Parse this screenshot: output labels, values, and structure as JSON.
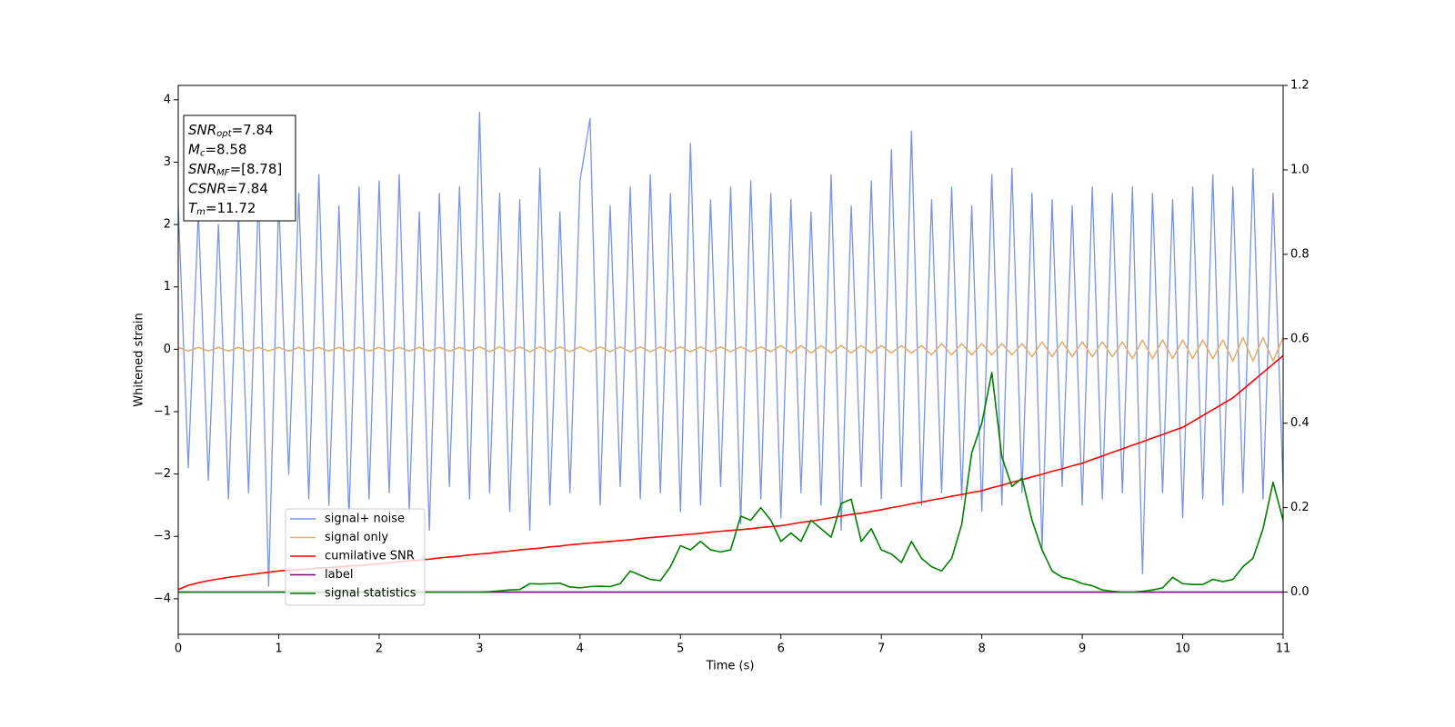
{
  "chart_data": {
    "type": "line",
    "xlabel": "Time (s)",
    "ylabel": "Whitened strain",
    "xlim": [
      0,
      11
    ],
    "xticks": [
      0,
      1,
      2,
      3,
      4,
      5,
      6,
      7,
      8,
      9,
      10,
      11
    ],
    "ylim": [
      -4.57,
      4.23
    ],
    "yticks": [
      {
        "value": -4,
        "label": "−4"
      },
      {
        "value": -3,
        "label": "−3"
      },
      {
        "value": -2,
        "label": "−2"
      },
      {
        "value": -1,
        "label": "−1"
      },
      0,
      1,
      2,
      3,
      4
    ],
    "y2lim": [
      -0.1,
      1.2
    ],
    "y2ticks": [
      {
        "value": 0,
        "label": "0.0"
      },
      {
        "value": 0.2,
        "label": "0.2"
      },
      {
        "value": 0.4,
        "label": "0.4"
      },
      {
        "value": 0.6,
        "label": "0.6"
      },
      {
        "value": 0.8,
        "label": "0.8"
      },
      {
        "value": 1,
        "label": "1.0"
      },
      {
        "value": 1.2,
        "label": "1.2"
      }
    ],
    "annotation": [
      {
        "main": "SNR",
        "sub": "opt",
        "rest": "=7.84"
      },
      {
        "main": "M",
        "sub": "c",
        "rest": "=8.58"
      },
      {
        "main": "SNR",
        "sub": "MF",
        "rest": "=[8.78]"
      },
      {
        "main": "CSNR",
        "rest": "=7.84"
      },
      {
        "main": "T",
        "sub": "m",
        "rest": "=11.72"
      }
    ],
    "x": [
      0,
      0.1,
      0.2,
      0.3,
      0.4,
      0.5,
      0.6,
      0.7,
      0.8,
      0.9,
      1,
      1.1,
      1.2,
      1.3,
      1.4,
      1.5,
      1.6,
      1.7,
      1.8,
      1.9,
      2,
      2.1,
      2.2,
      2.3,
      2.4,
      2.5,
      2.6,
      2.7,
      2.8,
      2.9,
      3,
      3.1,
      3.2,
      3.3,
      3.4,
      3.5,
      3.6,
      3.7,
      3.8,
      3.9,
      4,
      4.1,
      4.2,
      4.3,
      4.4,
      4.5,
      4.6,
      4.7,
      4.8,
      4.9,
      5,
      5.1,
      5.2,
      5.3,
      5.4,
      5.5,
      5.6,
      5.7,
      5.8,
      5.9,
      6,
      6.1,
      6.2,
      6.3,
      6.4,
      6.5,
      6.6,
      6.7,
      6.8,
      6.9,
      7,
      7.1,
      7.2,
      7.3,
      7.4,
      7.5,
      7.6,
      7.7,
      7.8,
      7.9,
      8,
      8.1,
      8.2,
      8.3,
      8.4,
      8.5,
      8.6,
      8.7,
      8.8,
      8.9,
      9,
      9.1,
      9.2,
      9.3,
      9.4,
      9.5,
      9.6,
      9.7,
      9.8,
      9.9,
      10,
      10.1,
      10.2,
      10.3,
      10.4,
      10.5,
      10.6,
      10.7,
      10.8,
      10.9,
      11
    ],
    "series": [
      {
        "name": "signal+ noise",
        "color": "#7893e8",
        "axis": "y",
        "values": [
          2.3,
          -1.9,
          2.2,
          -2.1,
          2.0,
          -2.4,
          2.2,
          -2.3,
          2.5,
          -3.8,
          2.4,
          -2.0,
          2.5,
          -2.4,
          2.8,
          -2.5,
          2.3,
          -2.7,
          2.6,
          -2.4,
          2.7,
          -2.3,
          2.8,
          -2.6,
          2.2,
          -2.9,
          2.5,
          -2.2,
          2.6,
          -2.4,
          3.8,
          -2.3,
          2.5,
          -2.6,
          2.4,
          -2.9,
          2.9,
          -2.5,
          2.2,
          -2.3,
          2.7,
          3.7,
          -2.5,
          2.3,
          -2.2,
          2.6,
          -2.4,
          2.8,
          -2.3,
          2.5,
          -2.6,
          3.3,
          -2.5,
          2.4,
          -2.2,
          2.6,
          -2.8,
          2.7,
          -2.4,
          2.5,
          -2.7,
          2.4,
          -2.3,
          2.2,
          -2.5,
          2.8,
          -2.9,
          2.3,
          -2.2,
          2.7,
          -2.4,
          3.2,
          -2.2,
          3.5,
          -2.5,
          2.4,
          -2.3,
          2.6,
          -2.4,
          2.3,
          -2.6,
          2.8,
          -2.5,
          2.9,
          -2.3,
          2.5,
          -3.2,
          2.4,
          -2.2,
          2.3,
          -2.5,
          2.6,
          -2.4,
          2.5,
          -2.3,
          2.6,
          -3.6,
          2.5,
          -2.3,
          2.4,
          -2.7,
          2.6,
          -2.4,
          2.8,
          -2.5,
          2.6,
          -2.3,
          2.9,
          -2.4,
          2.5,
          -2.2
        ]
      },
      {
        "name": "signal only",
        "color": "#e0b070",
        "axis": "y",
        "values": [
          0.03,
          -0.03,
          0.03,
          -0.03,
          0.03,
          -0.03,
          0.03,
          -0.03,
          0.03,
          -0.03,
          0.03,
          -0.03,
          0.03,
          -0.03,
          0.03,
          -0.03,
          0.03,
          -0.03,
          0.03,
          -0.03,
          0.03,
          -0.03,
          0.03,
          -0.03,
          0.03,
          -0.03,
          0.03,
          -0.03,
          0.03,
          -0.03,
          0.04,
          -0.04,
          0.04,
          -0.04,
          0.04,
          -0.04,
          0.04,
          -0.04,
          0.04,
          -0.04,
          0.04,
          -0.04,
          0.04,
          -0.04,
          0.04,
          -0.04,
          0.04,
          -0.04,
          0.04,
          -0.04,
          0.04,
          -0.04,
          0.04,
          -0.04,
          0.04,
          -0.04,
          0.04,
          -0.04,
          0.04,
          -0.04,
          0.06,
          -0.06,
          0.06,
          -0.06,
          0.06,
          -0.06,
          0.06,
          -0.06,
          0.06,
          -0.06,
          0.06,
          -0.06,
          0.06,
          -0.06,
          0.06,
          -0.09,
          0.09,
          -0.09,
          0.09,
          -0.09,
          0.09,
          -0.09,
          0.09,
          -0.09,
          0.09,
          -0.12,
          0.12,
          -0.12,
          0.12,
          -0.12,
          0.12,
          -0.12,
          0.12,
          -0.12,
          0.12,
          -0.15,
          0.15,
          -0.15,
          0.15,
          -0.15,
          0.15,
          -0.15,
          0.15,
          -0.15,
          0.15,
          -0.19,
          0.19,
          -0.19,
          0.19,
          -0.19,
          0.19
        ]
      },
      {
        "name": "cumilative SNR",
        "color": "#ff0000",
        "axis": "y2",
        "values": [
          0.006,
          0.016,
          0.022,
          0.027,
          0.031,
          0.035,
          0.038,
          0.041,
          0.044,
          0.047,
          0.05,
          0.052,
          0.053,
          0.055,
          0.057,
          0.058,
          0.06,
          0.062,
          0.063,
          0.065,
          0.067,
          0.069,
          0.072,
          0.074,
          0.076,
          0.078,
          0.081,
          0.083,
          0.085,
          0.088,
          0.09,
          0.092,
          0.095,
          0.097,
          0.1,
          0.102,
          0.104,
          0.107,
          0.109,
          0.112,
          0.114,
          0.116,
          0.118,
          0.12,
          0.122,
          0.124,
          0.127,
          0.129,
          0.131,
          0.133,
          0.135,
          0.137,
          0.139,
          0.142,
          0.144,
          0.146,
          0.148,
          0.15,
          0.153,
          0.155,
          0.157,
          0.161,
          0.165,
          0.168,
          0.172,
          0.176,
          0.18,
          0.184,
          0.187,
          0.191,
          0.195,
          0.2,
          0.204,
          0.209,
          0.213,
          0.218,
          0.222,
          0.227,
          0.231,
          0.236,
          0.24,
          0.247,
          0.253,
          0.26,
          0.266,
          0.273,
          0.279,
          0.286,
          0.292,
          0.299,
          0.305,
          0.314,
          0.322,
          0.331,
          0.339,
          0.348,
          0.356,
          0.365,
          0.373,
          0.382,
          0.39,
          0.404,
          0.418,
          0.432,
          0.446,
          0.46,
          0.48,
          0.5,
          0.52,
          0.54,
          0.56
        ]
      },
      {
        "name": "label",
        "color": "#800080",
        "axis": "y2",
        "values": [
          0,
          0,
          0,
          0,
          0,
          0,
          0,
          0,
          0,
          0,
          0,
          0,
          0,
          0,
          0,
          0,
          0,
          0,
          0,
          0,
          0,
          0,
          0,
          0,
          0,
          0,
          0,
          0,
          0,
          0,
          0,
          0,
          0,
          0,
          0,
          0,
          0,
          0,
          0,
          0,
          0,
          0,
          0,
          0,
          0,
          0,
          0,
          0,
          0,
          0,
          0,
          0,
          0,
          0,
          0,
          0,
          0,
          0,
          0,
          0,
          0,
          0,
          0,
          0,
          0,
          0,
          0,
          0,
          0,
          0,
          0,
          0,
          0,
          0,
          0,
          0,
          0,
          0,
          0,
          0,
          0,
          0,
          0,
          0,
          0,
          0,
          0,
          0,
          0,
          0,
          0,
          0,
          0,
          0,
          0,
          0,
          0,
          0,
          0,
          0,
          0,
          0,
          0,
          0,
          0,
          0,
          0,
          0,
          0,
          0,
          0
        ]
      },
      {
        "name": "signal statistics",
        "color": "#008000",
        "axis": "y2",
        "values": [
          0,
          0,
          0,
          0,
          0,
          0,
          0,
          0,
          0,
          0,
          0,
          0,
          0,
          0,
          0,
          0,
          0,
          0,
          0,
          0,
          0,
          0,
          0,
          0,
          0,
          0,
          0,
          0,
          0,
          0,
          0,
          0.001,
          0.003,
          0.005,
          0.006,
          0.02,
          0.019,
          0.02,
          0.021,
          0.012,
          0.01,
          0.013,
          0.014,
          0.013,
          0.02,
          0.05,
          0.04,
          0.03,
          0.027,
          0.06,
          0.11,
          0.1,
          0.12,
          0.1,
          0.095,
          0.1,
          0.18,
          0.17,
          0.2,
          0.17,
          0.12,
          0.14,
          0.12,
          0.17,
          0.15,
          0.13,
          0.21,
          0.22,
          0.12,
          0.15,
          0.1,
          0.09,
          0.07,
          0.12,
          0.08,
          0.06,
          0.05,
          0.08,
          0.16,
          0.33,
          0.4,
          0.52,
          0.32,
          0.25,
          0.27,
          0.17,
          0.1,
          0.05,
          0.035,
          0.03,
          0.02,
          0.015,
          0.005,
          0.002,
          0,
          0,
          0.002,
          0.005,
          0.01,
          0.035,
          0.02,
          0.018,
          0.018,
          0.03,
          0.025,
          0.03,
          0.06,
          0.08,
          0.15,
          0.26,
          0.17
        ]
      }
    ]
  }
}
